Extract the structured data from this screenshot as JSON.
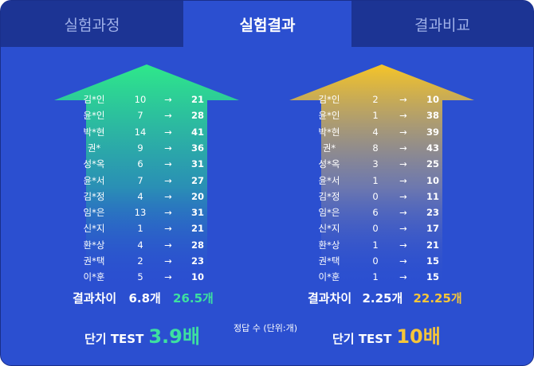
{
  "tabs": [
    {
      "label": "실험과정",
      "active": false
    },
    {
      "label": "실험결과",
      "active": true
    },
    {
      "label": "결과비교",
      "active": false
    }
  ],
  "arrow_glyph": "→",
  "left": {
    "rows": [
      {
        "name": "김*인",
        "before": "10",
        "after": "21"
      },
      {
        "name": "윤*인",
        "before": "7",
        "after": "28"
      },
      {
        "name": "박*현",
        "before": "14",
        "after": "41"
      },
      {
        "name": "권*",
        "before": "9",
        "after": "36"
      },
      {
        "name": "성*옥",
        "before": "6",
        "after": "31"
      },
      {
        "name": "윤*서",
        "before": "7",
        "after": "27"
      },
      {
        "name": "김*정",
        "before": "4",
        "after": "20"
      },
      {
        "name": "임*은",
        "before": "13",
        "after": "31"
      },
      {
        "name": "신*지",
        "before": "1",
        "after": "21"
      },
      {
        "name": "환*상",
        "before": "4",
        "after": "28"
      },
      {
        "name": "권*택",
        "before": "2",
        "after": "23"
      },
      {
        "name": "이*훈",
        "before": "5",
        "after": "10"
      }
    ],
    "diff_label": "결과차이",
    "diff_before": "6.8개",
    "diff_after": "26.5개",
    "short_label": "단기 TEST",
    "short_value": "3.9배",
    "color_top": "#2ee88a",
    "color_bottom": "#2b4fd0"
  },
  "right": {
    "rows": [
      {
        "name": "김*인",
        "before": "2",
        "after": "10"
      },
      {
        "name": "윤*인",
        "before": "1",
        "after": "38"
      },
      {
        "name": "박*현",
        "before": "4",
        "after": "39"
      },
      {
        "name": "권*",
        "before": "8",
        "after": "43"
      },
      {
        "name": "성*옥",
        "before": "3",
        "after": "25"
      },
      {
        "name": "윤*서",
        "before": "1",
        "after": "10"
      },
      {
        "name": "김*정",
        "before": "0",
        "after": "11"
      },
      {
        "name": "임*은",
        "before": "6",
        "after": "23"
      },
      {
        "name": "신*지",
        "before": "0",
        "after": "17"
      },
      {
        "name": "환*상",
        "before": "1",
        "after": "21"
      },
      {
        "name": "권*택",
        "before": "0",
        "after": "15"
      },
      {
        "name": "이*훈",
        "before": "1",
        "after": "15"
      }
    ],
    "diff_label": "결과차이",
    "diff_before": "2.25개",
    "diff_after": "22.25개",
    "short_label": "단기 TEST",
    "short_value": "10배",
    "color_top": "#f5c428",
    "color_bottom": "#2b4fd0"
  },
  "unit_note": "정답 수 (단위:개)"
}
